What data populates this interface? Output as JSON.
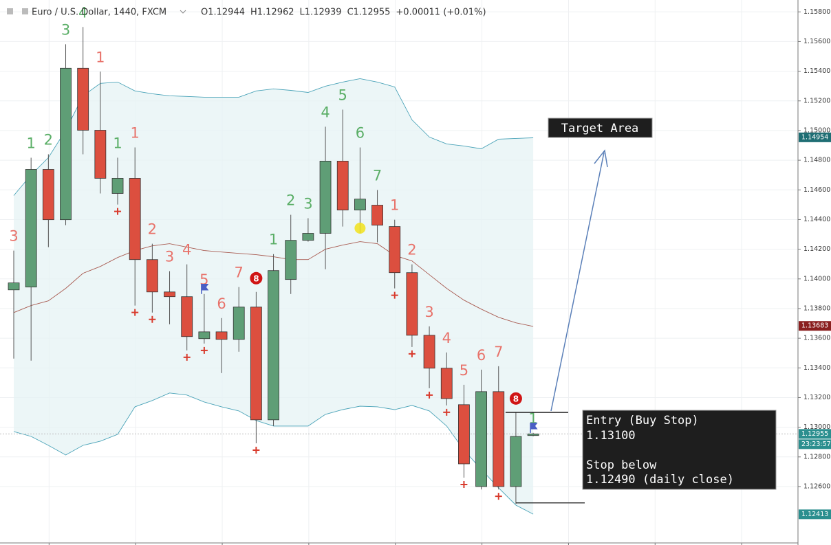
{
  "chart_data": {
    "type": "candlestick",
    "title": "Euro / U.S. Dollar, 1440, FXCM",
    "header_values": [
      "O1.12944",
      "H1.12962",
      "L1.12939",
      "C1.12955",
      "+0.00011 (+0.01%)"
    ],
    "open": [
      1.13926,
      1.13945,
      1.14738,
      1.14399,
      1.1542,
      1.15002,
      1.14576,
      1.14678,
      1.1413,
      1.13912,
      1.1388,
      1.13597,
      1.13643,
      1.13592,
      1.1381,
      1.1305,
      1.13996,
      1.1426,
      1.14307,
      1.14794,
      1.14464,
      1.14497,
      1.14353,
      1.14042,
      1.1362,
      1.13398,
      1.13152,
      1.126,
      1.1324,
      1.126,
      1.12944
    ],
    "high": [
      1.14191,
      1.14817,
      1.1484,
      1.15582,
      1.15698,
      1.15397,
      1.14817,
      1.14886,
      1.14237,
      1.14052,
      1.14098,
      1.13898,
      1.13736,
      1.13945,
      1.13912,
      1.14167,
      1.14432,
      1.14409,
      1.15026,
      1.15141,
      1.14886,
      1.14599,
      1.14399,
      1.14098,
      1.1368,
      1.13504,
      1.13286,
      1.13388,
      1.13411,
      1.13101,
      1.12962
    ],
    "low": [
      1.13463,
      1.13449,
      1.14214,
      1.14362,
      1.1484,
      1.14576,
      1.14501,
      1.1382,
      1.13773,
      1.13694,
      1.13518,
      1.13564,
      1.13365,
      1.13509,
      1.12892,
      1.13008,
      1.13898,
      1.14251,
      1.14065,
      1.14353,
      1.14307,
      1.14246,
      1.13936,
      1.13541,
      1.13263,
      1.13147,
      1.1266,
      1.12581,
      1.12581,
      1.12484,
      1.12939
    ],
    "close": [
      1.13973,
      1.14738,
      1.14399,
      1.1542,
      1.15002,
      1.14678,
      1.14678,
      1.1413,
      1.13912,
      1.1388,
      1.13611,
      1.13643,
      1.13592,
      1.1381,
      1.1305,
      1.14056,
      1.1426,
      1.14307,
      1.14794,
      1.14464,
      1.14538,
      1.14362,
      1.14042,
      1.1362,
      1.13398,
      1.13193,
      1.12753,
      1.1324,
      1.126,
      1.12938,
      1.12955
    ],
    "up_color": "#5f9e76",
    "down_color": "#dc4f3f",
    "upper_band": [
      1.14562,
      1.14701,
      1.14817,
      1.15002,
      1.15234,
      1.15318,
      1.15327,
      1.15267,
      1.15248,
      1.15234,
      1.1523,
      1.15225,
      1.15225,
      1.15225,
      1.15267,
      1.15281,
      1.15271,
      1.15257,
      1.15299,
      1.15327,
      1.1535,
      1.15327,
      1.15294,
      1.15072,
      1.14956,
      1.1491,
      1.14896,
      1.14877,
      1.14942,
      1.14947,
      1.14951
    ],
    "middle_band": [
      1.13773,
      1.1382,
      1.13852,
      1.13936,
      1.14038,
      1.14084,
      1.14144,
      1.14191,
      1.14223,
      1.14237,
      1.14214,
      1.14191,
      1.14181,
      1.14172,
      1.14163,
      1.14149,
      1.1413,
      1.1413,
      1.142,
      1.14228,
      1.14251,
      1.14237,
      1.14158,
      1.14121,
      1.14028,
      1.13936,
      1.13857,
      1.13796,
      1.13741,
      1.13704,
      1.1368
    ],
    "lower_band": [
      1.12971,
      1.12938,
      1.12878,
      1.12813,
      1.12878,
      1.12906,
      1.12952,
      1.13138,
      1.1318,
      1.13231,
      1.13217,
      1.1317,
      1.13138,
      1.1311,
      1.13045,
      1.13008,
      1.13008,
      1.13008,
      1.13087,
      1.13119,
      1.13142,
      1.13138,
      1.13119,
      1.13147,
      1.1311,
      1.13008,
      1.12846,
      1.12716,
      1.12591,
      1.12475,
      1.12414
    ],
    "band_color": "#4aa3b8",
    "middle_color": "#a85a50",
    "setup_counts": [
      3,
      1,
      2,
      3,
      4,
      1,
      1,
      1,
      2,
      3,
      4,
      5,
      6,
      7,
      8,
      1,
      2,
      3,
      4,
      5,
      6,
      7,
      1,
      2,
      3,
      4,
      5,
      6,
      7,
      8,
      1
    ],
    "setup_sides": [
      "sell",
      "buy",
      "buy",
      "buy",
      "buy",
      "sell",
      "buy",
      "sell",
      "sell",
      "sell",
      "sell",
      "sell",
      "sell",
      "sell",
      "sell",
      "buy",
      "buy",
      "buy",
      "buy",
      "buy",
      "buy",
      "buy",
      "sell",
      "sell",
      "sell",
      "sell",
      "sell",
      "sell",
      "sell",
      "sell",
      "buy"
    ],
    "buy_color": "#5aae66",
    "sell_color": "#e8726a",
    "perfection_plus": [
      false,
      false,
      false,
      false,
      false,
      false,
      true,
      true,
      true,
      false,
      true,
      true,
      false,
      false,
      true,
      false,
      false,
      false,
      false,
      false,
      false,
      false,
      true,
      true,
      true,
      true,
      true,
      false,
      true,
      false,
      false
    ],
    "flags": [
      false,
      false,
      false,
      false,
      false,
      false,
      false,
      false,
      false,
      false,
      false,
      true,
      false,
      false,
      false,
      false,
      false,
      false,
      false,
      false,
      false,
      false,
      false,
      false,
      false,
      false,
      false,
      false,
      false,
      false,
      true
    ],
    "ylim": [
      1.1222,
      1.1588
    ],
    "yticks": [
      {
        "value": 1.158,
        "label": "1.15800"
      },
      {
        "value": 1.156,
        "label": "1.15600"
      },
      {
        "value": 1.154,
        "label": "1.15400"
      },
      {
        "value": 1.152,
        "label": "1.15200"
      },
      {
        "value": 1.15,
        "label": "1.15000"
      },
      {
        "value": 1.148,
        "label": "1.14800"
      },
      {
        "value": 1.146,
        "label": "1.14600"
      },
      {
        "value": 1.144,
        "label": "1.14400"
      },
      {
        "value": 1.142,
        "label": "1.14200"
      },
      {
        "value": 1.14,
        "label": "1.14000"
      },
      {
        "value": 1.138,
        "label": "1.13800"
      },
      {
        "value": 1.136,
        "label": "1.13600"
      },
      {
        "value": 1.134,
        "label": "1.13400"
      },
      {
        "value": 1.132,
        "label": "1.13200"
      },
      {
        "value": 1.13,
        "label": "1.13000"
      },
      {
        "value": 1.128,
        "label": "1.12800"
      },
      {
        "value": 1.126,
        "label": "1.12600"
      }
    ],
    "grid": true,
    "price_tags": [
      {
        "value": 1.14954,
        "label": "1.14954",
        "color": "#1f6e74"
      },
      {
        "value": 1.13683,
        "label": "1.13683",
        "color": "#8a1f1f"
      },
      {
        "value": 1.12955,
        "label": "1.12955",
        "color": "#2b8f8f"
      },
      {
        "value": 1.12413,
        "label": "1.12413",
        "color": "#2b8f8f"
      }
    ],
    "countdown": "23:23:57",
    "target_text": "Target Area",
    "entry_text": [
      "Entry (Buy Stop)",
      "1.13100",
      "Stop below",
      "1.12490 (daily close)"
    ],
    "entry_level": 1.131,
    "stop_level": 1.1249
  }
}
